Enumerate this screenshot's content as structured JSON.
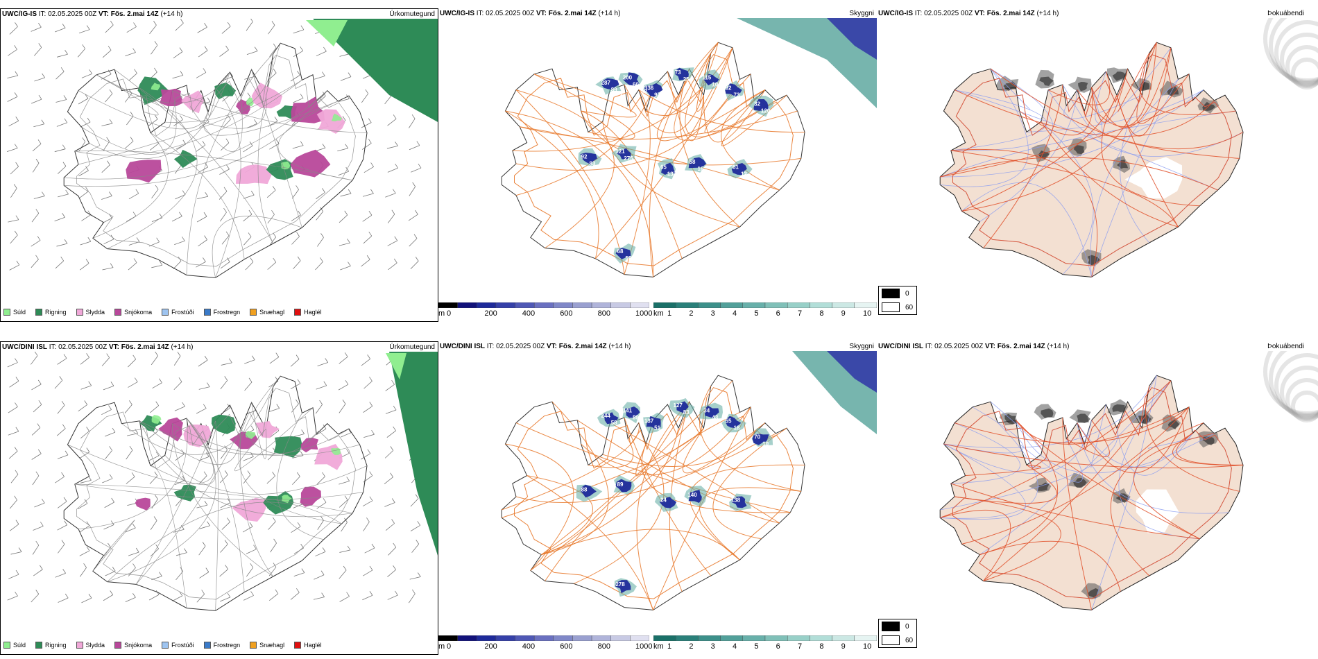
{
  "rows": [
    {
      "model": "UWC/IG-IS",
      "it_label": "IT:",
      "it": "02.05.2025 00Z",
      "vt_label": "VT:",
      "vt": "Fös. 2.mai 14Z",
      "lead": "(+14 h)",
      "panels": [
        "Úrkomutegund",
        "Skyggni",
        "Þokuábendi"
      ],
      "visibility_labels": [
        "287",
        "200",
        "336",
        "73",
        "115",
        "92",
        "32",
        "92",
        "121",
        "65",
        "58",
        "61",
        "68",
        "89",
        "60",
        "97",
        "25",
        "10",
        "73",
        "120",
        "83",
        "275",
        "137",
        "16",
        "12",
        "59",
        "48",
        "98"
      ]
    },
    {
      "model": "UWC/DINI ISL",
      "it_label": "IT:",
      "it": "02.05.2025 00Z",
      "vt_label": "VT:",
      "vt": "Fös. 2.mai 14Z",
      "lead": "(+14 h)",
      "panels": [
        "Úrkomutegund",
        "Skyggni",
        "Þokuábendi"
      ],
      "visibility_labels": [
        "244",
        "141",
        "137",
        "127",
        "34",
        "55",
        "70",
        "88",
        "89",
        "24",
        "140",
        "138",
        "278",
        "58",
        "89",
        "51",
        "83",
        "43",
        "18",
        "10"
      ]
    }
  ],
  "precip_legend": [
    {
      "label": "Súld",
      "color": "#90ee90"
    },
    {
      "label": "Rigning",
      "color": "#2e8b57"
    },
    {
      "label": "Slydda",
      "color": "#f0a8d8"
    },
    {
      "label": "Snjókoma",
      "color": "#b8489a"
    },
    {
      "label": "Frostúði",
      "color": "#9ec4f0"
    },
    {
      "label": "Frostregn",
      "color": "#3a7ac8"
    },
    {
      "label": "Snæhagl",
      "color": "#f0a020"
    },
    {
      "label": "Haglél",
      "color": "#e01010"
    }
  ],
  "terrain_bar": {
    "unit": "m",
    "ticks": [
      "0",
      "200",
      "400",
      "600",
      "800",
      "1000"
    ],
    "colors": [
      "#000000",
      "#12127a",
      "#1e2a9a",
      "#3540a8",
      "#4f58b5",
      "#6a70c0",
      "#8088c8",
      "#9aa0d0",
      "#b0b4da",
      "#c8cae4",
      "#e0e0f0"
    ]
  },
  "visibility_bar": {
    "unit": "km",
    "ticks": [
      "1",
      "2",
      "3",
      "4",
      "5",
      "6",
      "7",
      "8",
      "9",
      "10"
    ],
    "colors": [
      "#1a7068",
      "#2a807a",
      "#3c908a",
      "#52a09a",
      "#68b0aa",
      "#80c0b8",
      "#98d0c8",
      "#b2ded8",
      "#cce8e4",
      "#e6f4f2"
    ]
  },
  "fog_legend": [
    {
      "label": "0",
      "color": "#000000"
    },
    {
      "label": "60",
      "color": "#ffffff"
    }
  ]
}
